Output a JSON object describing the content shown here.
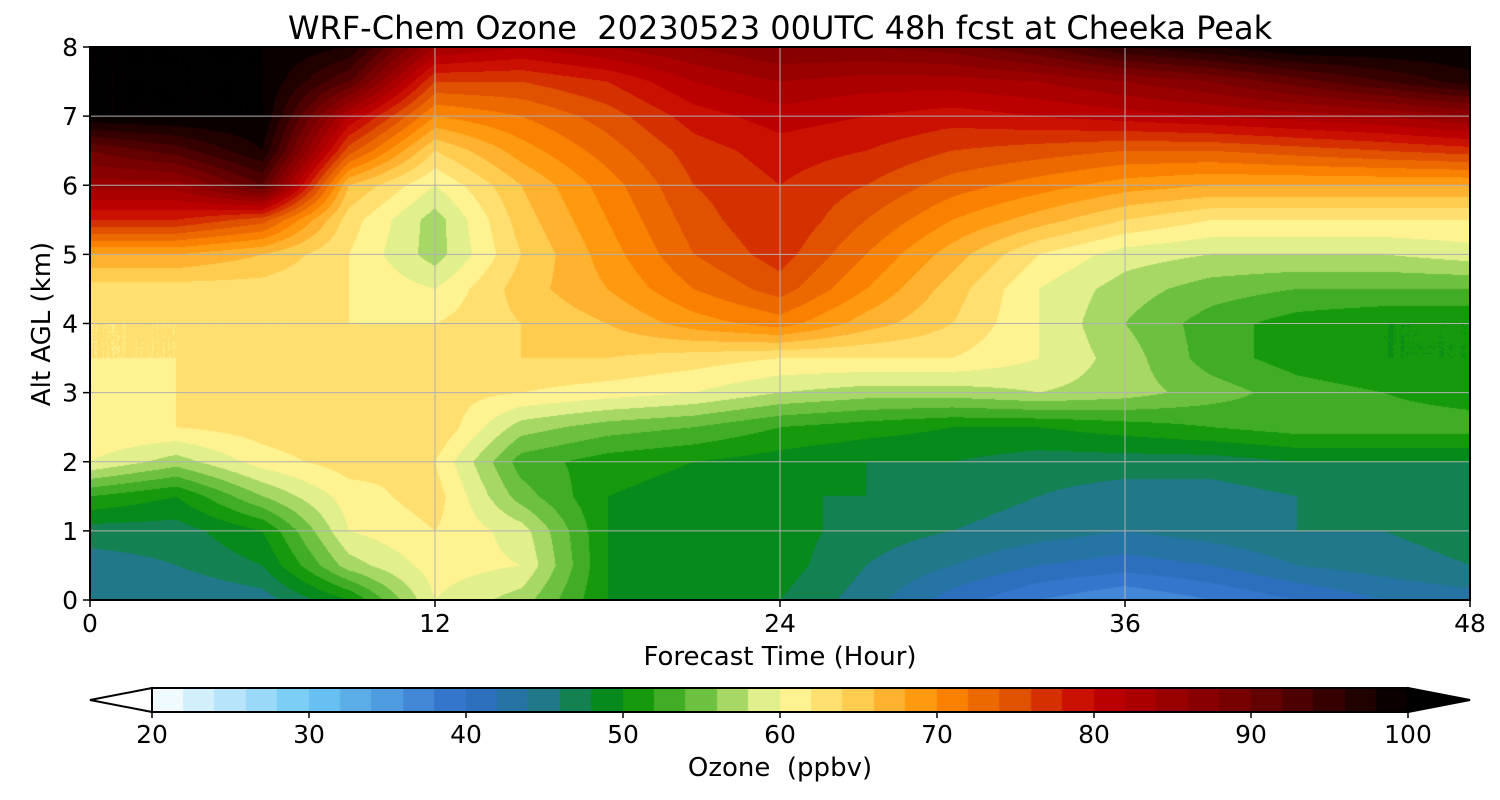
{
  "chart_data": {
    "type": "heatmap",
    "title": "WRF-Chem Ozone  20230523 00UTC 48h fcst at Cheeka Peak",
    "xlabel": "Forecast Time (Hour)",
    "ylabel": "Alt AGL (km)",
    "xlim": [
      0,
      48
    ],
    "ylim": [
      0,
      8
    ],
    "x_ticks": [
      0,
      12,
      24,
      36,
      48
    ],
    "y_ticks": [
      0,
      1,
      2,
      3,
      4,
      5,
      6,
      7,
      8
    ],
    "grid": true,
    "x": [
      0,
      3,
      6,
      9,
      12,
      15,
      18,
      21,
      24,
      27,
      30,
      33,
      36,
      39,
      42,
      45,
      48
    ],
    "y": [
      0,
      0.5,
      1,
      1.5,
      2,
      2.5,
      3,
      3.5,
      4,
      4.5,
      5,
      5.5,
      6,
      6.5,
      7,
      7.5,
      8
    ],
    "z": [
      [
        44,
        44,
        45,
        50,
        60,
        57,
        50,
        49,
        48,
        45,
        41,
        38,
        36,
        38,
        40,
        42,
        43
      ],
      [
        45,
        46,
        48,
        57,
        61,
        60,
        50,
        49,
        49,
        46,
        44,
        42,
        41,
        42,
        44,
        45,
        46
      ],
      [
        47,
        47,
        50,
        60,
        62,
        59,
        50,
        49,
        49,
        47,
        46,
        45,
        44,
        45,
        46,
        46,
        47
      ],
      [
        52,
        50,
        56,
        61,
        63,
        55,
        50,
        49,
        48,
        48,
        47,
        46,
        45,
        45,
        46,
        47,
        47
      ],
      [
        60,
        57,
        61,
        63,
        62,
        53,
        51,
        50,
        49,
        48,
        48,
        47,
        47,
        47,
        48,
        48,
        48
      ],
      [
        62,
        62,
        63,
        64,
        64,
        57,
        55,
        54,
        52,
        51,
        50,
        50,
        51,
        52,
        53,
        53,
        53
      ],
      [
        61,
        62,
        63,
        64,
        63,
        62,
        61,
        60,
        58,
        57,
        57,
        58,
        57,
        55,
        53,
        52,
        51
      ],
      [
        62,
        62,
        63,
        64,
        63,
        64,
        64,
        63,
        62,
        62,
        62,
        60,
        57,
        53,
        51,
        50,
        50
      ],
      [
        62,
        62,
        62,
        62,
        62,
        64,
        66,
        69,
        71,
        67,
        64,
        60,
        56,
        53,
        51,
        50,
        50
      ],
      [
        63,
        63,
        63,
        62,
        60,
        65,
        68,
        72,
        75,
        70,
        65,
        60,
        57,
        55,
        54,
        54,
        54
      ],
      [
        68,
        68,
        66,
        62,
        57,
        64,
        69,
        74,
        77,
        72,
        67,
        62,
        59,
        58,
        58,
        58,
        59
      ],
      [
        78,
        78,
        75,
        63,
        57,
        65,
        70,
        75,
        78,
        74,
        70,
        67,
        64,
        62,
        62,
        62,
        62
      ],
      [
        85,
        85,
        92,
        66,
        60,
        66,
        71,
        76,
        78,
        76,
        73,
        71,
        69,
        68,
        68,
        68,
        68
      ],
      [
        90,
        93,
        98,
        75,
        64,
        69,
        73,
        77,
        79,
        78,
        76,
        75,
        74,
        74,
        75,
        76,
        77
      ],
      [
        100,
        100,
        100,
        82,
        70,
        72,
        75,
        79,
        81,
        80,
        79,
        80,
        81,
        82,
        83,
        84,
        86
      ],
      [
        100,
        100,
        100,
        92,
        76,
        76,
        78,
        82,
        84,
        83,
        83,
        84,
        86,
        88,
        91,
        94,
        97
      ],
      [
        100,
        100,
        100,
        98,
        84,
        82,
        84,
        86,
        88,
        88,
        89,
        92,
        96,
        98,
        100,
        100,
        100
      ]
    ],
    "colorbar": {
      "label": "Ozone  (ppbv)",
      "min": 20,
      "max": 100,
      "ticks": [
        20,
        30,
        40,
        50,
        60,
        70,
        80,
        90,
        100
      ],
      "extend": "both",
      "orientation": "horizontal",
      "placement": "bottom",
      "colors": [
        {
          "value": 20,
          "color": "#ffffff"
        },
        {
          "value": 30,
          "color": "#6ec8f5"
        },
        {
          "value": 40,
          "color": "#2f6dc9"
        },
        {
          "value": 45,
          "color": "#207889"
        },
        {
          "value": 50,
          "color": "#008f00"
        },
        {
          "value": 55,
          "color": "#6dc040"
        },
        {
          "value": 60,
          "color": "#fffba0"
        },
        {
          "value": 65,
          "color": "#ffcc50"
        },
        {
          "value": 70,
          "color": "#ff8c00"
        },
        {
          "value": 75,
          "color": "#e05200"
        },
        {
          "value": 80,
          "color": "#c40000"
        },
        {
          "value": 90,
          "color": "#6e0000"
        },
        {
          "value": 100,
          "color": "#000000"
        }
      ]
    }
  }
}
